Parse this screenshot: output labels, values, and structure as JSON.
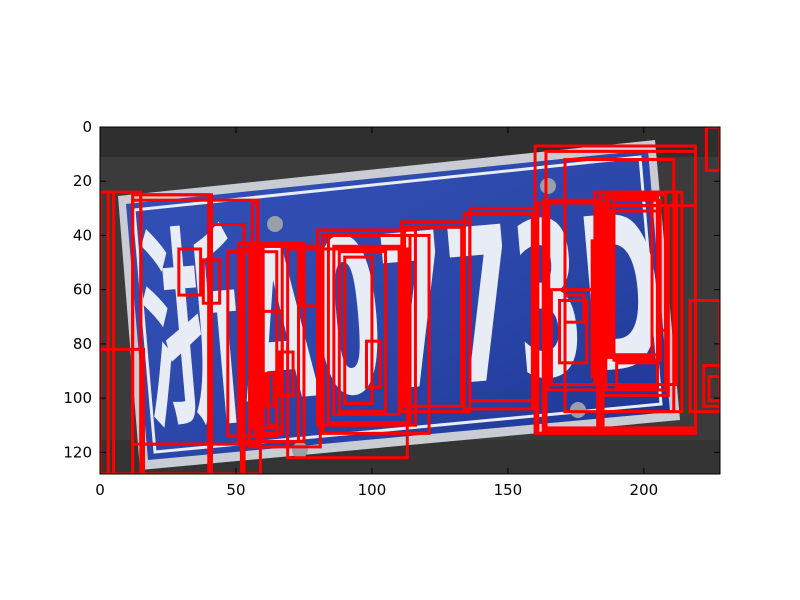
{
  "figure": {
    "plate": {
      "text": "浙A0773D",
      "plate_color": "#1f3fb0",
      "character_color": "#e8ecf5",
      "background_color": "#3a3b3a"
    },
    "axes": {
      "x_range": [
        0,
        228
      ],
      "y_range": [
        128,
        0
      ],
      "x_ticks": [
        0,
        50,
        100,
        150,
        200
      ],
      "y_ticks": [
        0,
        20,
        40,
        60,
        80,
        100,
        120
      ],
      "x_tick_labels": [
        "0",
        "50",
        "100",
        "150",
        "200"
      ],
      "y_tick_labels": [
        "0",
        "20",
        "40",
        "60",
        "80",
        "100",
        "120"
      ]
    },
    "box_color": "#ff0000",
    "boxes": [
      [
        0,
        24,
        5,
        128
      ],
      [
        0,
        82,
        16,
        128
      ],
      [
        3,
        24,
        15,
        128
      ],
      [
        12,
        25,
        41,
        128
      ],
      [
        12,
        27,
        58,
        117
      ],
      [
        15,
        25,
        40,
        117
      ],
      [
        29,
        45,
        37,
        62
      ],
      [
        38,
        49,
        44,
        65
      ],
      [
        40,
        36,
        53,
        128
      ],
      [
        47,
        46,
        65,
        114
      ],
      [
        51,
        43,
        75,
        116
      ],
      [
        52,
        45,
        59,
        128
      ],
      [
        55,
        44,
        81,
        118
      ],
      [
        56,
        28,
        58,
        111
      ],
      [
        57,
        44,
        67,
        113
      ],
      [
        60,
        44,
        73,
        116
      ],
      [
        60,
        68,
        67,
        111
      ],
      [
        61,
        91,
        64,
        103
      ],
      [
        62,
        91,
        65,
        110
      ],
      [
        66,
        83,
        71,
        99
      ],
      [
        69,
        45,
        113,
        122
      ],
      [
        74,
        44,
        81,
        66
      ],
      [
        80,
        38,
        116,
        110
      ],
      [
        82,
        40,
        121,
        113
      ],
      [
        84,
        40,
        114,
        109
      ],
      [
        86,
        44,
        110,
        106
      ],
      [
        88,
        46,
        105,
        105
      ],
      [
        90,
        48,
        100,
        102
      ],
      [
        98,
        79,
        103,
        96
      ],
      [
        111,
        35,
        136,
        105
      ],
      [
        112,
        37,
        133,
        103
      ],
      [
        134,
        32,
        159,
        104
      ],
      [
        136,
        30,
        160,
        101
      ],
      [
        160,
        7,
        219,
        113
      ],
      [
        161,
        28,
        185,
        113
      ],
      [
        163,
        27,
        184,
        112
      ],
      [
        164,
        9,
        219,
        111
      ],
      [
        165,
        28,
        183,
        97
      ],
      [
        166,
        60,
        183,
        95
      ],
      [
        169,
        64,
        179,
        87
      ],
      [
        171,
        62,
        178,
        72
      ],
      [
        171,
        12,
        211,
        105
      ],
      [
        181,
        42,
        184,
        92
      ],
      [
        182,
        24,
        212,
        95
      ],
      [
        183,
        29,
        219,
        112
      ],
      [
        184,
        24,
        214,
        105
      ],
      [
        184,
        29,
        209,
        99
      ],
      [
        184,
        26,
        205,
        97
      ],
      [
        186,
        25,
        208,
        97
      ],
      [
        187,
        26,
        203,
        85
      ],
      [
        189,
        27,
        206,
        86
      ],
      [
        188,
        31,
        205,
        84
      ],
      [
        190,
        87,
        205,
        96
      ],
      [
        205,
        29,
        208,
        75
      ],
      [
        217,
        64,
        228,
        105
      ],
      [
        222,
        88,
        228,
        103
      ],
      [
        223,
        0,
        228,
        16
      ],
      [
        224,
        92,
        228,
        101
      ]
    ]
  }
}
